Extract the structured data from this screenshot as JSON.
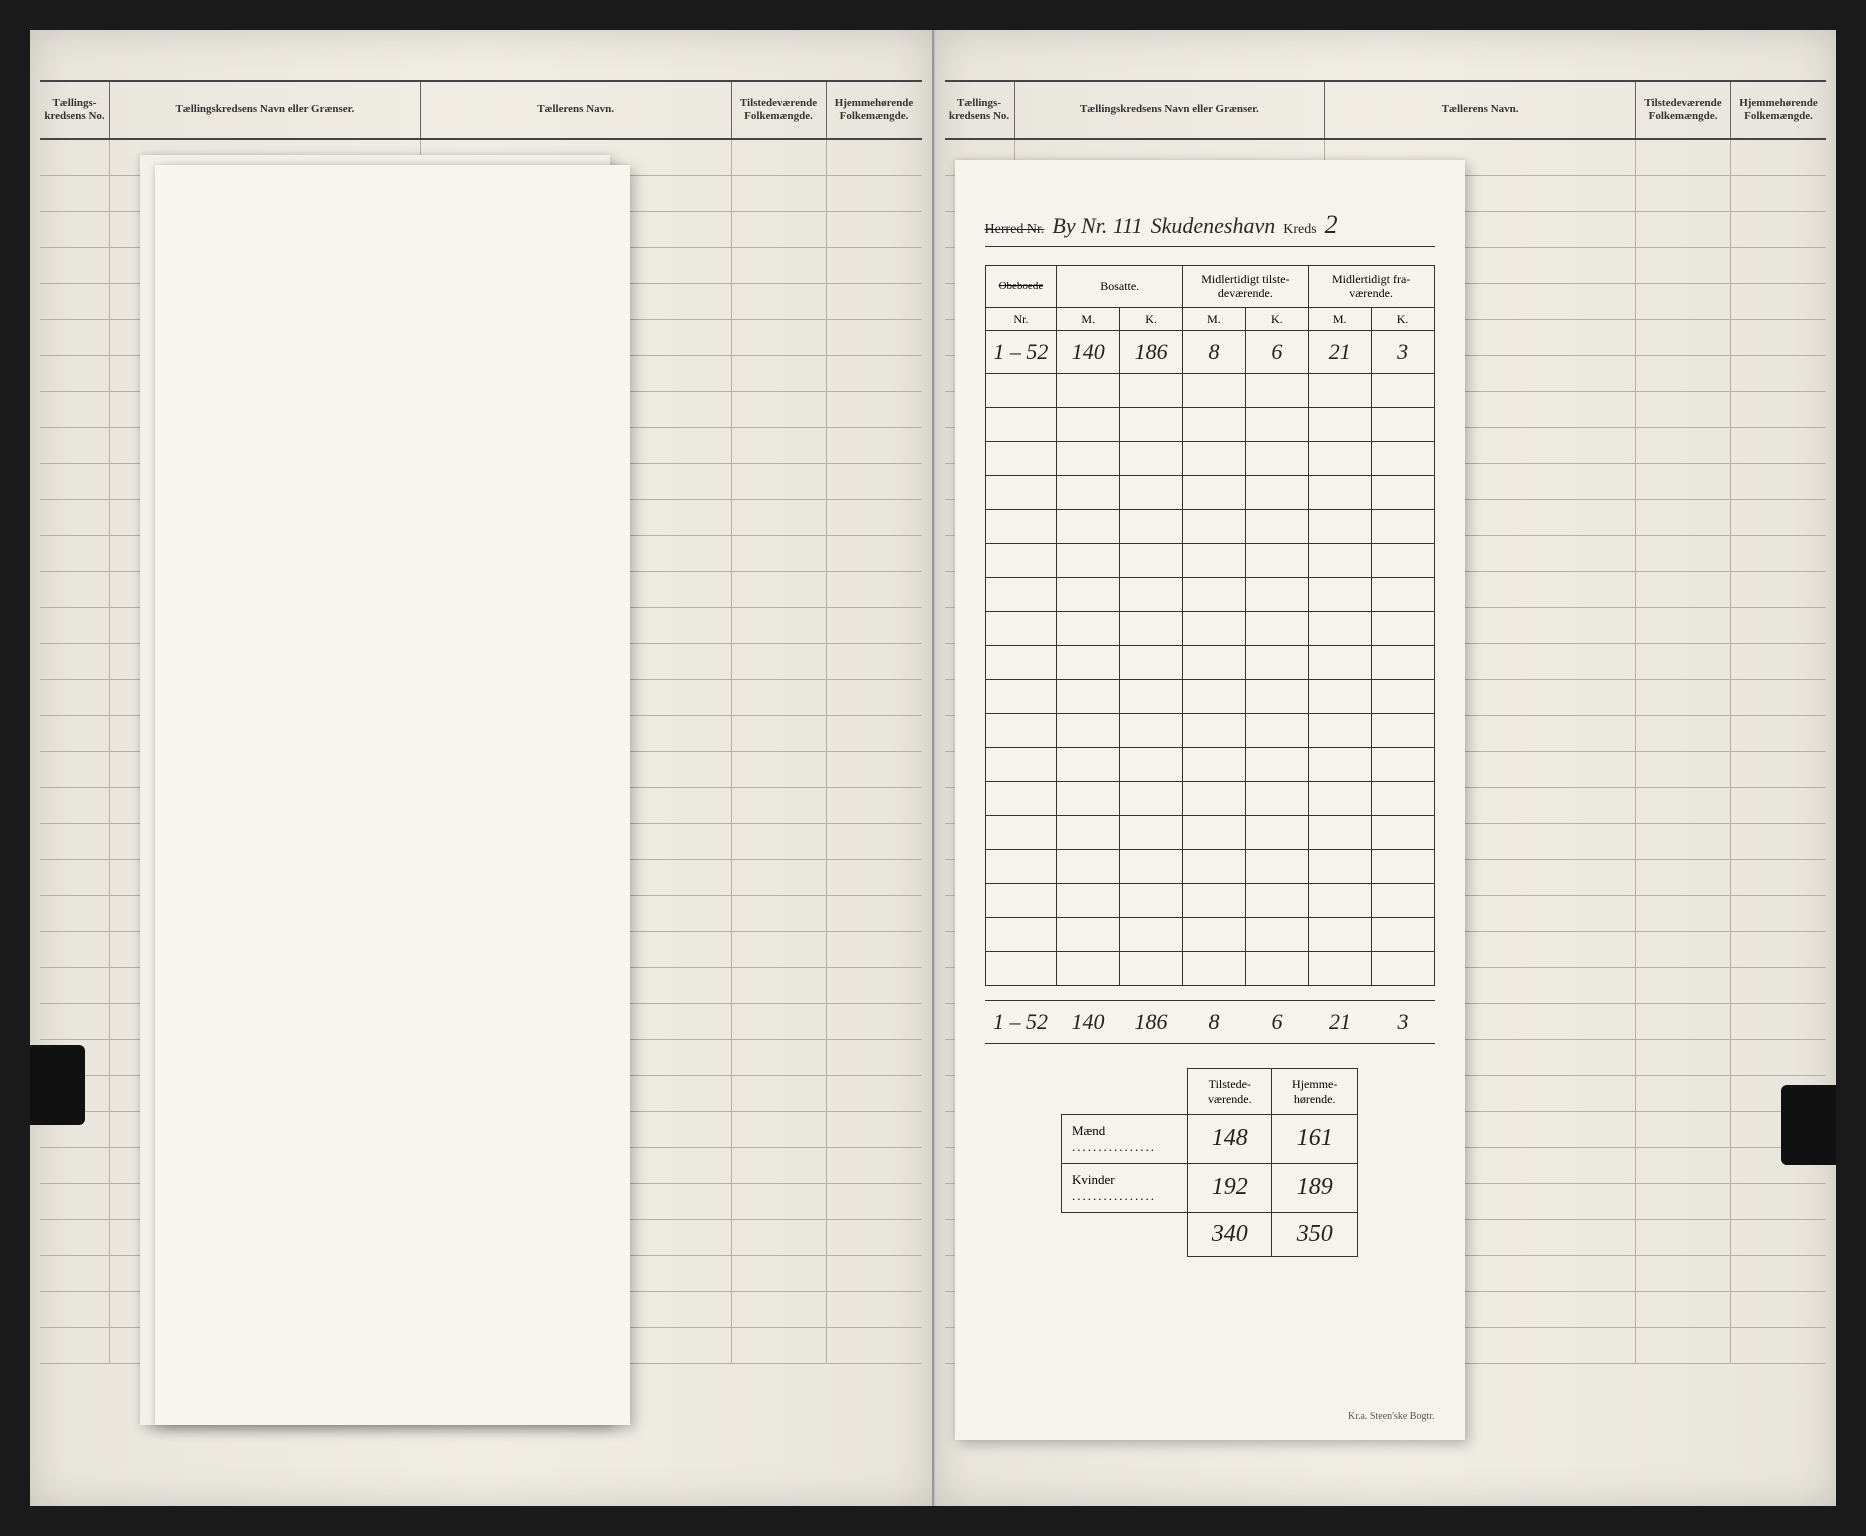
{
  "ledger_headers": {
    "c1": "Tællings-kredsens No.",
    "c2": "Tællingskredsens Navn eller Grænser.",
    "c3": "Tællerens Navn.",
    "c4": "Tilstedeværende Folkemængde.",
    "c5": "Hjemmehørende Folkemængde."
  },
  "form": {
    "herred_label": "Herred   Nr.",
    "by_prefix": "By Nr. 111",
    "by_name": "Skudeneshavn",
    "kreds_label": "Kreds",
    "kreds_no": "2"
  },
  "main_table": {
    "head": {
      "col1_strike": "Obeboede",
      "col1_sub": "Nr.",
      "bosatte": "Bosatte.",
      "tilstede": "Midlertidigt tilste-deværende.",
      "frav": "Midlertidigt fra-værende.",
      "m": "M.",
      "k": "K."
    },
    "data_row": {
      "nr": "1 – 52",
      "bosatte_m": "140",
      "bosatte_k": "186",
      "tilst_m": "8",
      "tilst_k": "6",
      "frav_m": "21",
      "frav_k": "3"
    },
    "totals": {
      "nr": "1 – 52",
      "bosatte_m": "140",
      "bosatte_k": "186",
      "tilst_m": "8",
      "tilst_k": "6",
      "frav_m": "21",
      "frav_k": "3"
    },
    "blank_rows": 18
  },
  "summary": {
    "head_tilstede": "Tilstede-værende.",
    "head_hjemme": "Hjemme-hørende.",
    "maend_label": "Mænd",
    "kvinder_label": "Kvinder",
    "maend_t": "148",
    "maend_h": "161",
    "kvinder_t": "192",
    "kvinder_h": "189",
    "total_t": "340",
    "total_h": "350"
  },
  "imprint": "Kr.a.   Steen'ske Bogtr.",
  "styling": {
    "page_bg": "#f0ede4",
    "sheet_bg": "#f7f5ee",
    "ink": "#222222",
    "rule": "#333333",
    "faint_rule": "#b5b0a0",
    "handwriting_font": "Brush Script MT",
    "print_font": "Georgia"
  }
}
